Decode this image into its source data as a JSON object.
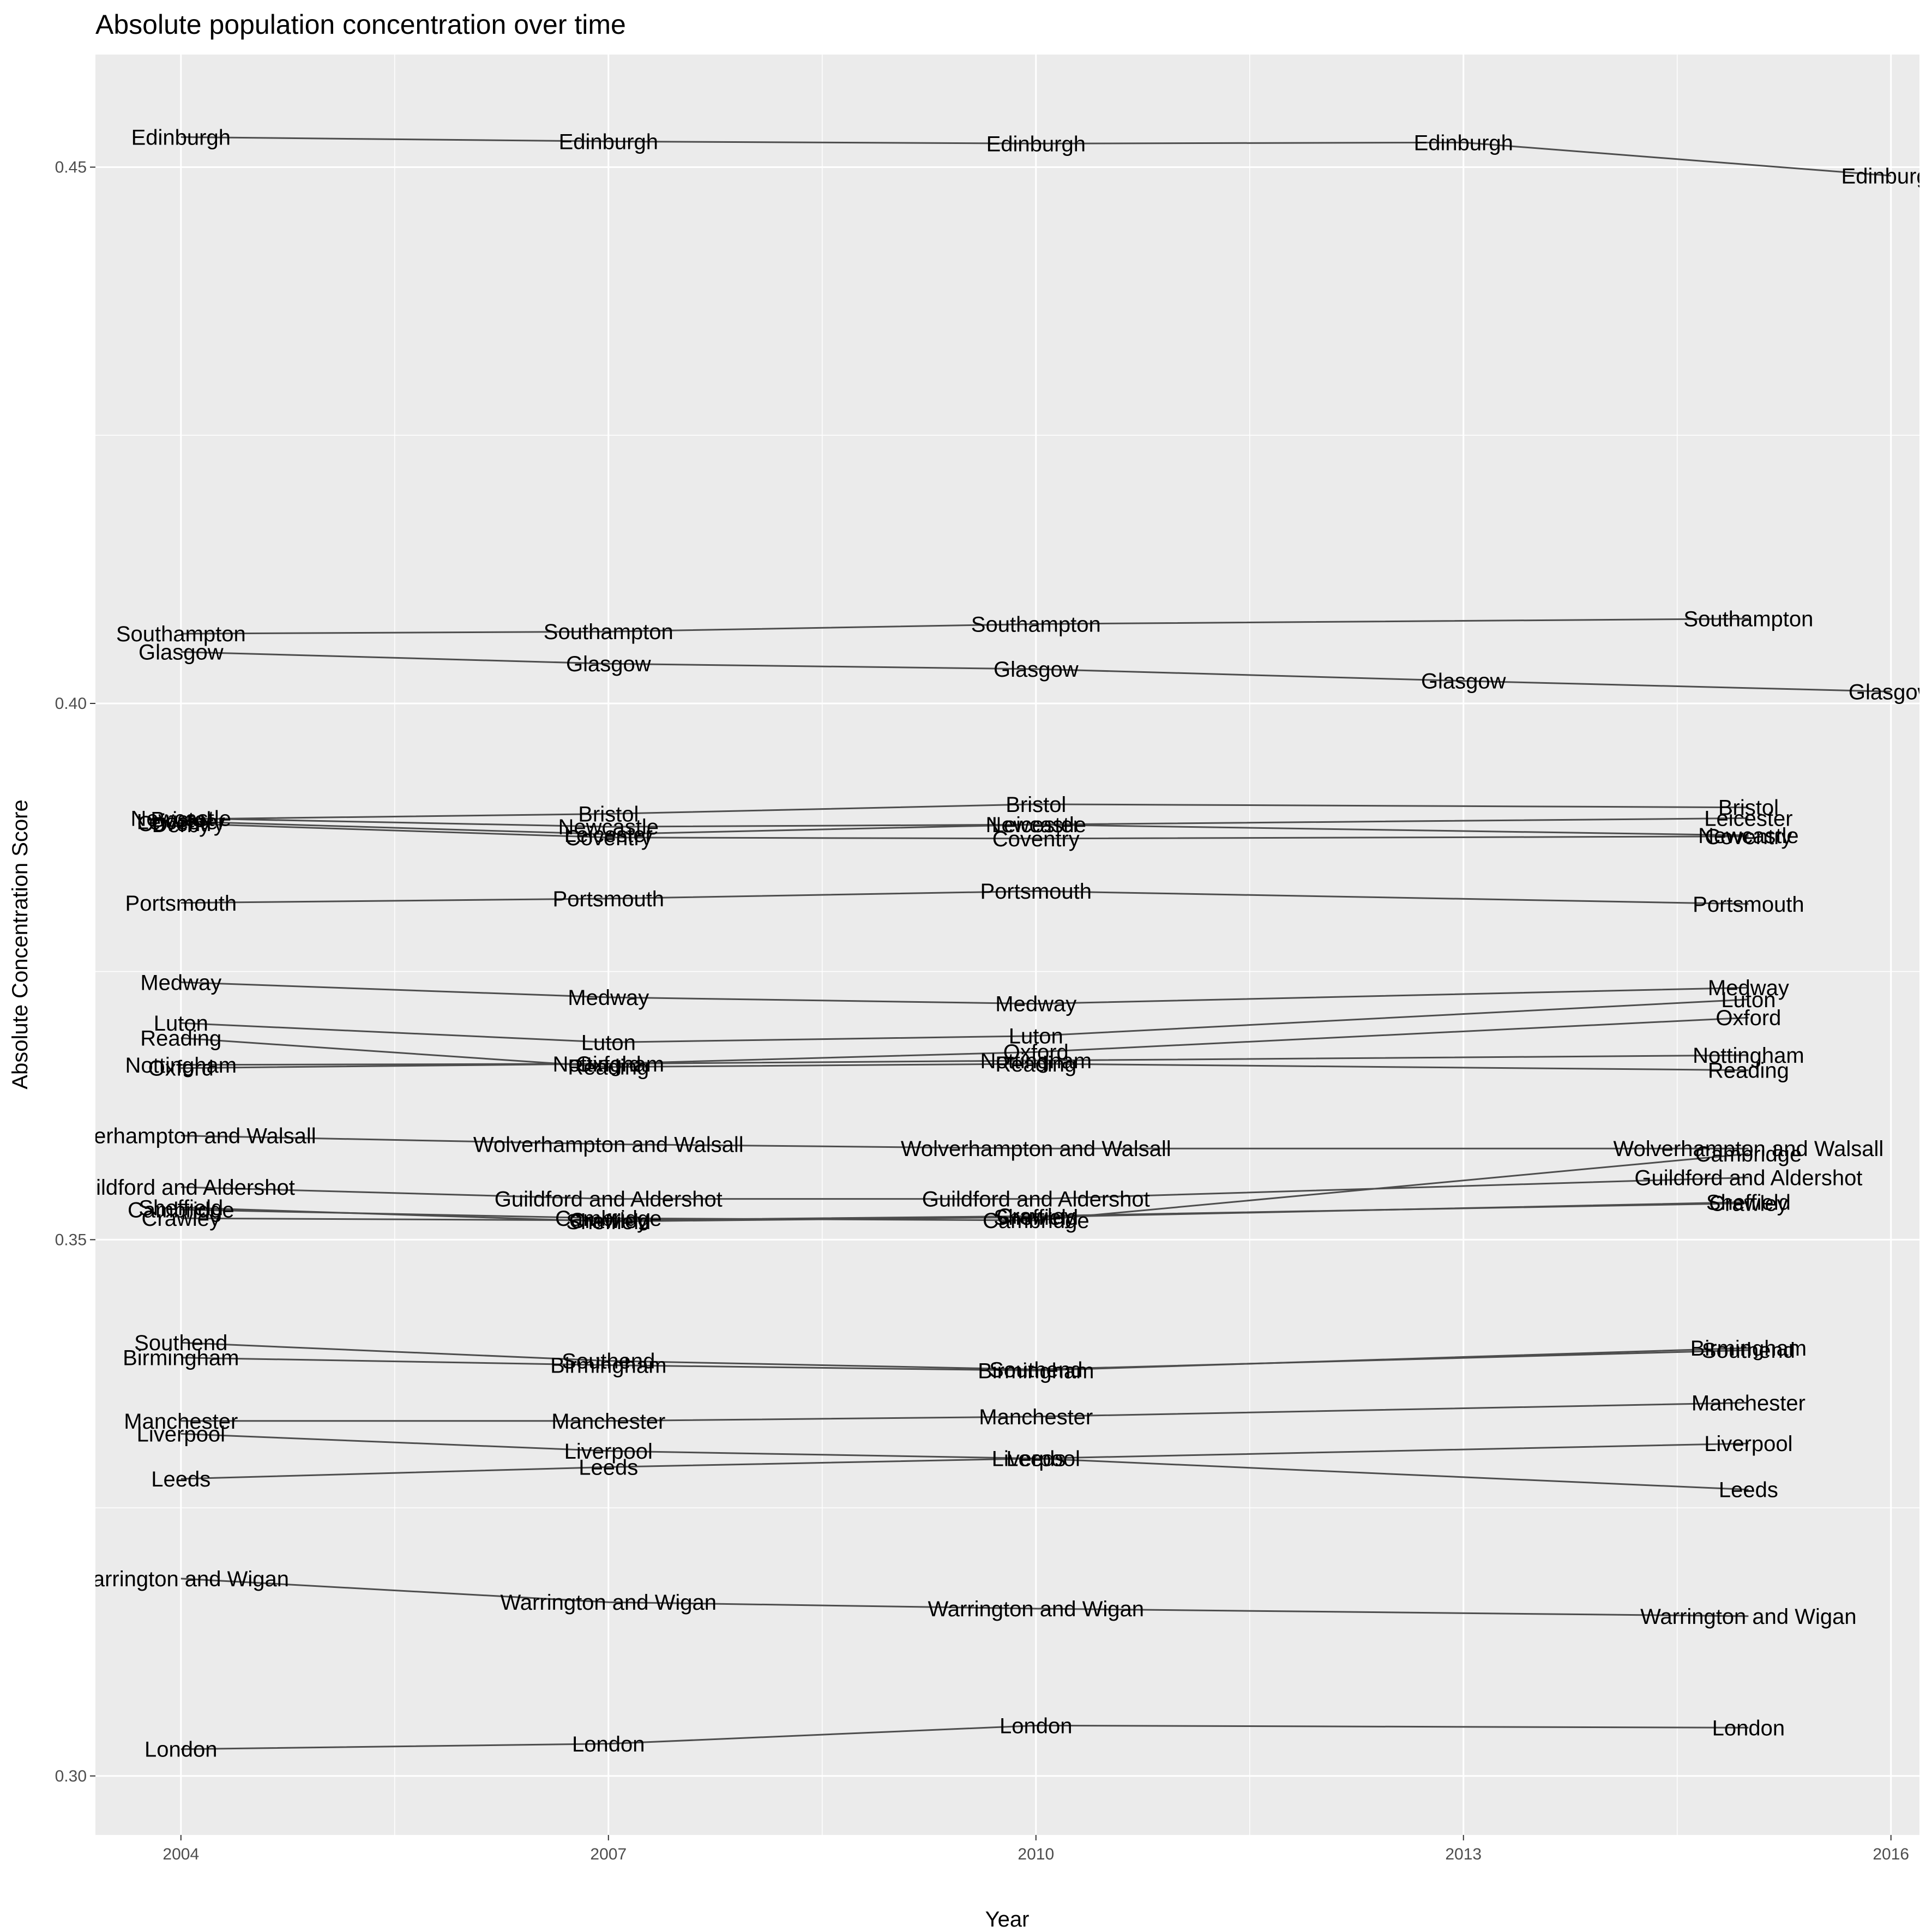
{
  "chart_data": {
    "type": "line",
    "title": "Absolute population concentration over time",
    "xlabel": "Year",
    "ylabel": "Absolute Concentration Score",
    "xlim": [
      2003.4,
      2016.2
    ],
    "ylim": [
      0.2945,
      0.4605
    ],
    "x_ticks": [
      2004,
      2007,
      2010,
      2013,
      2016
    ],
    "x_tick_labels": [
      "2004",
      "2007",
      "2010",
      "2013",
      "2016"
    ],
    "y_ticks": [
      0.3,
      0.35,
      0.4,
      0.45
    ],
    "y_tick_labels": [
      "0.30",
      "0.35",
      "0.40",
      "0.45"
    ],
    "grid": true,
    "background": "#ebebeb",
    "grid_color": "#ffffff",
    "line_color": "#4d4d4d",
    "series": [
      {
        "name": "Edinburgh",
        "points": [
          [
            2004,
            0.4528
          ],
          [
            2007,
            0.4524
          ],
          [
            2010,
            0.4522
          ],
          [
            2013,
            0.4523
          ],
          [
            2016,
            0.4492
          ]
        ]
      },
      {
        "name": "Southampton",
        "points": [
          [
            2004,
            0.4065
          ],
          [
            2007,
            0.4067
          ],
          [
            2010,
            0.4074
          ],
          [
            2015,
            0.4079
          ]
        ]
      },
      {
        "name": "Glasgow",
        "points": [
          [
            2004,
            0.4048
          ],
          [
            2007,
            0.4037
          ],
          [
            2010,
            0.4032
          ],
          [
            2013,
            0.4021
          ],
          [
            2016,
            0.4011
          ]
        ]
      },
      {
        "name": "Bristol",
        "points": [
          [
            2004,
            0.3892
          ],
          [
            2007,
            0.3897
          ],
          [
            2010,
            0.3906
          ],
          [
            2015,
            0.3903
          ]
        ]
      },
      {
        "name": "Leicester",
        "points": [
          [
            2004,
            0.389
          ],
          [
            2007,
            0.3878
          ],
          [
            2010,
            0.3887
          ],
          [
            2015,
            0.3893
          ]
        ]
      },
      {
        "name": "Newcastle",
        "points": [
          [
            2004,
            0.3893
          ],
          [
            2007,
            0.3885
          ],
          [
            2010,
            0.3887
          ],
          [
            2015,
            0.3877
          ]
        ]
      },
      {
        "name": "Coventry",
        "points": [
          [
            2004,
            0.3888
          ],
          [
            2007,
            0.3875
          ],
          [
            2010,
            0.3874
          ],
          [
            2015,
            0.3876
          ]
        ]
      },
      {
        "name": "Derby",
        "points": [
          [
            2004,
            0.3887
          ]
        ]
      },
      {
        "name": "Portsmouth",
        "points": [
          [
            2004,
            0.3814
          ],
          [
            2007,
            0.3818
          ],
          [
            2010,
            0.3825
          ],
          [
            2015,
            0.3813
          ]
        ]
      },
      {
        "name": "Medway",
        "points": [
          [
            2004,
            0.374
          ],
          [
            2007,
            0.3726
          ],
          [
            2010,
            0.372
          ],
          [
            2015,
            0.3735
          ]
        ]
      },
      {
        "name": "Luton",
        "points": [
          [
            2004,
            0.3702
          ],
          [
            2007,
            0.3684
          ],
          [
            2010,
            0.369
          ],
          [
            2015,
            0.3724
          ]
        ]
      },
      {
        "name": "Reading",
        "points": [
          [
            2004,
            0.3688
          ],
          [
            2007,
            0.3661
          ],
          [
            2010,
            0.3664
          ],
          [
            2015,
            0.3658
          ]
        ]
      },
      {
        "name": "Nottingham",
        "points": [
          [
            2004,
            0.3663
          ],
          [
            2007,
            0.3664
          ],
          [
            2010,
            0.3667
          ],
          [
            2015,
            0.3672
          ]
        ]
      },
      {
        "name": "Oxford",
        "points": [
          [
            2004,
            0.366
          ],
          [
            2007,
            0.3664
          ],
          [
            2010,
            0.3675
          ],
          [
            2015,
            0.3707
          ]
        ]
      },
      {
        "name": "Wolverhampton and Walsall",
        "points": [
          [
            2004,
            0.3597
          ],
          [
            2007,
            0.3589
          ],
          [
            2010,
            0.3585
          ],
          [
            2015,
            0.3585
          ]
        ]
      },
      {
        "name": "Guildford and Aldershot",
        "points": [
          [
            2004,
            0.3549
          ],
          [
            2007,
            0.3538
          ],
          [
            2010,
            0.3538
          ],
          [
            2015,
            0.3558
          ]
        ]
      },
      {
        "name": "Sheffield",
        "points": [
          [
            2004,
            0.353
          ],
          [
            2007,
            0.3517
          ],
          [
            2010,
            0.3521
          ],
          [
            2015,
            0.3535
          ]
        ]
      },
      {
        "name": "Cambridge",
        "points": [
          [
            2004,
            0.3528
          ],
          [
            2007,
            0.352
          ],
          [
            2010,
            0.3518
          ],
          [
            2015,
            0.358
          ]
        ]
      },
      {
        "name": "Crawley",
        "points": [
          [
            2004,
            0.352
          ],
          [
            2007,
            0.3518
          ],
          [
            2010,
            0.3522
          ],
          [
            2015,
            0.3534
          ]
        ]
      },
      {
        "name": "Southend",
        "points": [
          [
            2004,
            0.3404
          ],
          [
            2007,
            0.3387
          ],
          [
            2010,
            0.3379
          ],
          [
            2015,
            0.3397
          ]
        ]
      },
      {
        "name": "Birmingham",
        "points": [
          [
            2004,
            0.339
          ],
          [
            2007,
            0.3383
          ],
          [
            2010,
            0.3378
          ],
          [
            2015,
            0.3399
          ]
        ]
      },
      {
        "name": "Manchester",
        "points": [
          [
            2004,
            0.3331
          ],
          [
            2007,
            0.3331
          ],
          [
            2010,
            0.3335
          ],
          [
            2015,
            0.3348
          ]
        ]
      },
      {
        "name": "Liverpool",
        "points": [
          [
            2004,
            0.3319
          ],
          [
            2007,
            0.3303
          ],
          [
            2010,
            0.3296
          ],
          [
            2015,
            0.331
          ]
        ]
      },
      {
        "name": "Leeds",
        "points": [
          [
            2004,
            0.3277
          ],
          [
            2007,
            0.3288
          ],
          [
            2010,
            0.3296
          ],
          [
            2015,
            0.3267
          ]
        ]
      },
      {
        "name": "Warrington and Wigan",
        "points": [
          [
            2004,
            0.3184
          ],
          [
            2007,
            0.3162
          ],
          [
            2010,
            0.3156
          ],
          [
            2015,
            0.3149
          ]
        ]
      },
      {
        "name": "London",
        "points": [
          [
            2004,
            0.3025
          ],
          [
            2007,
            0.303
          ],
          [
            2010,
            0.3047
          ],
          [
            2015,
            0.3045
          ]
        ]
      }
    ]
  }
}
